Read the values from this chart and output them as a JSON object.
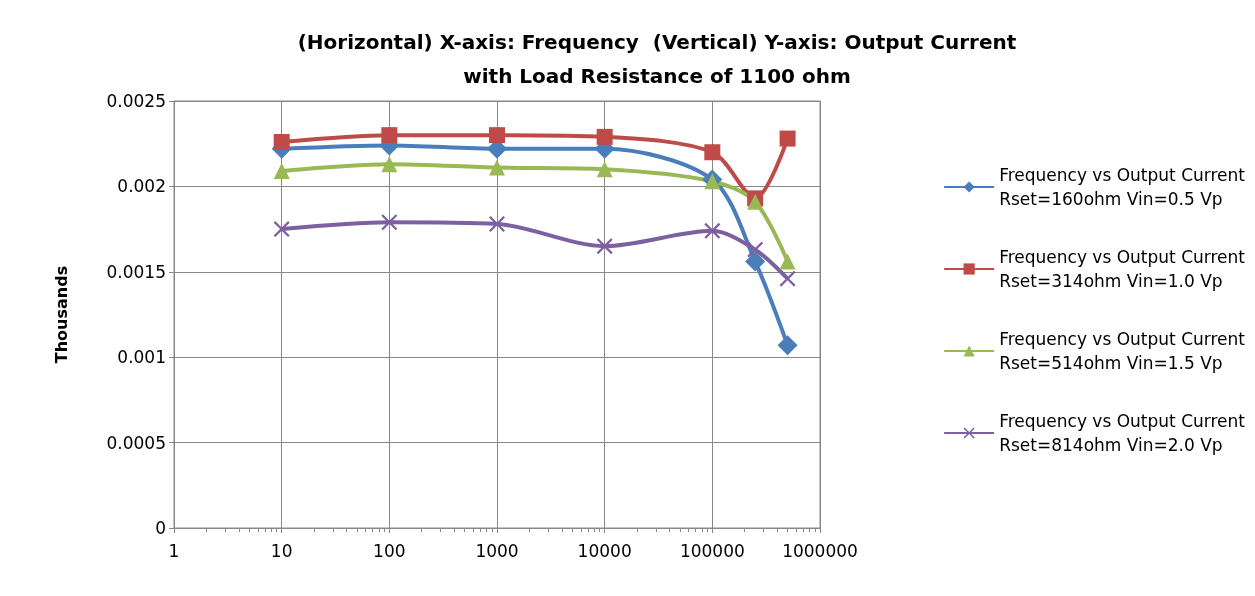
{
  "chart_data": {
    "type": "line",
    "title": "(Horizontal) X-axis: Frequency  (Vertical) Y-axis: Output Current\nwith Load Resistance of 1100 ohm",
    "ylabel": "Thousands",
    "x": [
      10,
      100,
      1000,
      10000,
      100000,
      250000,
      500000
    ],
    "log": "x",
    "xlim": [
      1,
      1000000
    ],
    "xticks": [
      1,
      10,
      100,
      1000,
      10000,
      100000,
      1000000
    ],
    "ylim": [
      0,
      0.0025
    ],
    "yticks": [
      0,
      0.0005,
      0.001,
      0.0015,
      0.002,
      0.0025
    ],
    "grid": true,
    "legend": "right",
    "line_style": "solid",
    "series": [
      {
        "name": "Frequency vs Output Current\nRset=160ohm Vin=0.5 Vp",
        "color": "#4a7ebb",
        "marker": "diamond",
        "values": [
          0.00222,
          0.00224,
          0.00222,
          0.00222,
          0.00204,
          0.00156,
          0.00107
        ]
      },
      {
        "name": "Frequency vs Output Current\nRset=314ohm Vin=1.0 Vp",
        "color": "#be4b48",
        "marker": "square",
        "values": [
          0.00226,
          0.0023,
          0.0023,
          0.00229,
          0.0022,
          0.00193,
          0.00228
        ]
      },
      {
        "name": "Frequency vs Output Current\nRset=514ohm Vin=1.5 Vp",
        "color": "#98b954",
        "marker": "triangle",
        "values": [
          0.00209,
          0.00213,
          0.00211,
          0.0021,
          0.00203,
          0.00191,
          0.00156
        ]
      },
      {
        "name": "Frequency vs Output Current\nRset=814ohm Vin=2.0 Vp",
        "color": "#7d60a0",
        "marker": "cross",
        "values": [
          0.00175,
          0.00179,
          0.00178,
          0.00165,
          0.00174,
          0.00163,
          0.00146
        ]
      }
    ]
  }
}
